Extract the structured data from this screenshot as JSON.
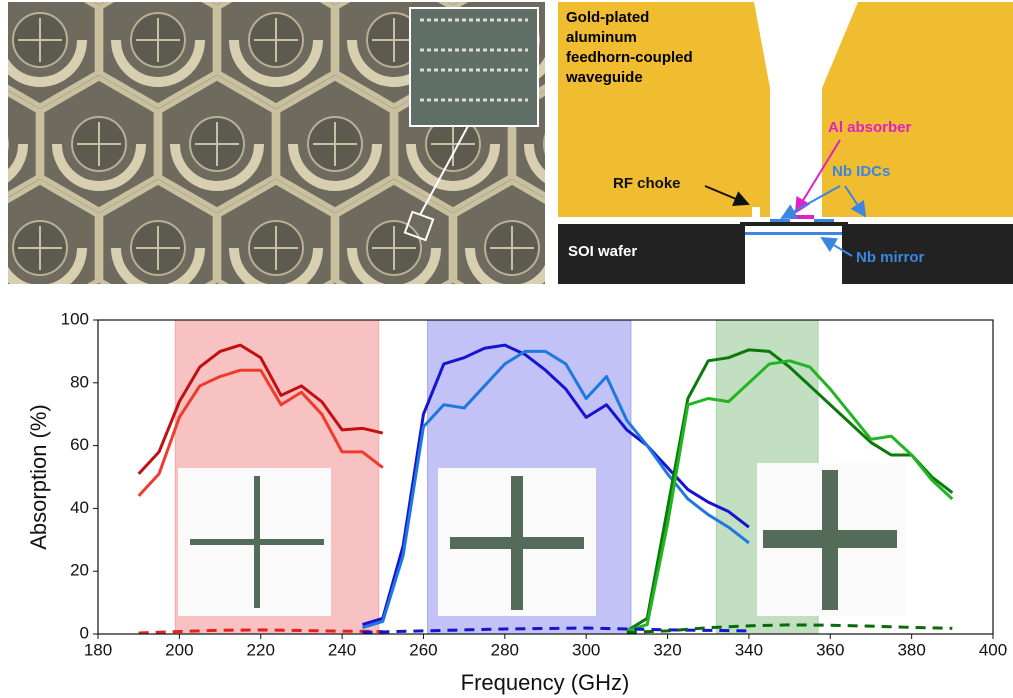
{
  "chart_data": {
    "type": "line",
    "xlabel": "Frequency (GHz)",
    "ylabel": "Absorption (%)",
    "xlim": [
      180,
      400
    ],
    "xticks": [
      180,
      200,
      220,
      240,
      260,
      280,
      300,
      320,
      340,
      360,
      380,
      400
    ],
    "ylim": [
      0,
      100
    ],
    "yticks": [
      0,
      20,
      40,
      60,
      80,
      100
    ],
    "bands": [
      {
        "xlim": [
          199,
          249
        ],
        "color": "#f7a8a8"
      },
      {
        "xlim": [
          261,
          311
        ],
        "color": "#a8a8f2"
      },
      {
        "xlim": [
          332,
          357
        ],
        "color": "#a8d2a8"
      }
    ],
    "series": [
      {
        "color": "#c01010",
        "dashed": false,
        "x": [
          190,
          195,
          200,
          205,
          210,
          215,
          220,
          225,
          230,
          235,
          240,
          245,
          250
        ],
        "values": [
          51,
          58,
          74,
          85,
          90,
          92,
          88,
          76,
          79,
          74,
          65,
          65.5,
          64
        ]
      },
      {
        "color": "#f03a2e",
        "dashed": false,
        "x": [
          190,
          195,
          200,
          205,
          210,
          215,
          220,
          225,
          230,
          235,
          240,
          245,
          250
        ],
        "values": [
          44,
          51,
          69,
          79,
          82,
          84,
          84,
          73,
          77,
          70,
          58,
          58,
          53
        ]
      },
      {
        "color": "#1414d2",
        "dashed": false,
        "x": [
          245,
          250,
          255,
          260,
          265,
          270,
          275,
          280,
          285,
          290,
          295,
          300,
          305,
          310,
          315,
          320,
          325,
          330,
          335,
          340
        ],
        "values": [
          3,
          5,
          28,
          70,
          86,
          88,
          91,
          92,
          89,
          84,
          78,
          69,
          73,
          65,
          60,
          53,
          46,
          42,
          39,
          34
        ]
      },
      {
        "color": "#1f78e0",
        "dashed": false,
        "x": [
          245,
          250,
          255,
          260,
          265,
          270,
          275,
          280,
          285,
          290,
          295,
          300,
          305,
          310,
          315,
          320,
          325,
          330,
          335,
          340
        ],
        "values": [
          2,
          4,
          25,
          66,
          73,
          72,
          79,
          86,
          90,
          90,
          86,
          75,
          82,
          68,
          60,
          51,
          43,
          38,
          34,
          29
        ]
      },
      {
        "color": "#0a7a0a",
        "dashed": false,
        "x": [
          310,
          315,
          320,
          325,
          330,
          335,
          340,
          345,
          350,
          355,
          360,
          365,
          370,
          375,
          380,
          385,
          390
        ],
        "values": [
          1,
          5,
          40,
          75,
          87,
          88,
          90.5,
          90,
          85,
          79,
          73,
          67,
          61,
          57,
          57,
          50,
          45
        ]
      },
      {
        "color": "#22b422",
        "dashed": false,
        "x": [
          310,
          315,
          320,
          325,
          330,
          335,
          340,
          345,
          350,
          355,
          360,
          365,
          370,
          375,
          380,
          385,
          390
        ],
        "values": [
          1,
          3,
          35,
          73,
          75,
          74,
          80,
          86,
          87,
          85,
          78,
          70,
          62,
          63,
          57,
          49,
          43
        ]
      },
      {
        "color": "#e82020",
        "dashed": true,
        "x": [
          190,
          200,
          210,
          220,
          230,
          240,
          250
        ],
        "values": [
          0.3,
          0.8,
          1.2,
          1.3,
          1.1,
          0.9,
          0.8
        ]
      },
      {
        "color": "#1414d2",
        "dashed": true,
        "x": [
          245,
          260,
          280,
          300,
          320,
          340
        ],
        "values": [
          0.5,
          1,
          1.6,
          1.9,
          1.3,
          1
        ]
      },
      {
        "color": "#0a6a0a",
        "dashed": true,
        "x": [
          310,
          320,
          330,
          340,
          350,
          360,
          370,
          380,
          390
        ],
        "values": [
          0.5,
          1,
          2,
          2.6,
          2.9,
          2.8,
          2.5,
          2.1,
          1.8
        ]
      }
    ]
  },
  "diagram": {
    "waveguide_label": [
      "Gold-plated",
      "aluminum",
      "feedhorn-coupled",
      "waveguide"
    ],
    "absorber": "Al absorber",
    "choke": "RF choke",
    "idcs": "Nb IDCs",
    "wafer": "SOI wafer",
    "mirror": "Nb mirror"
  }
}
